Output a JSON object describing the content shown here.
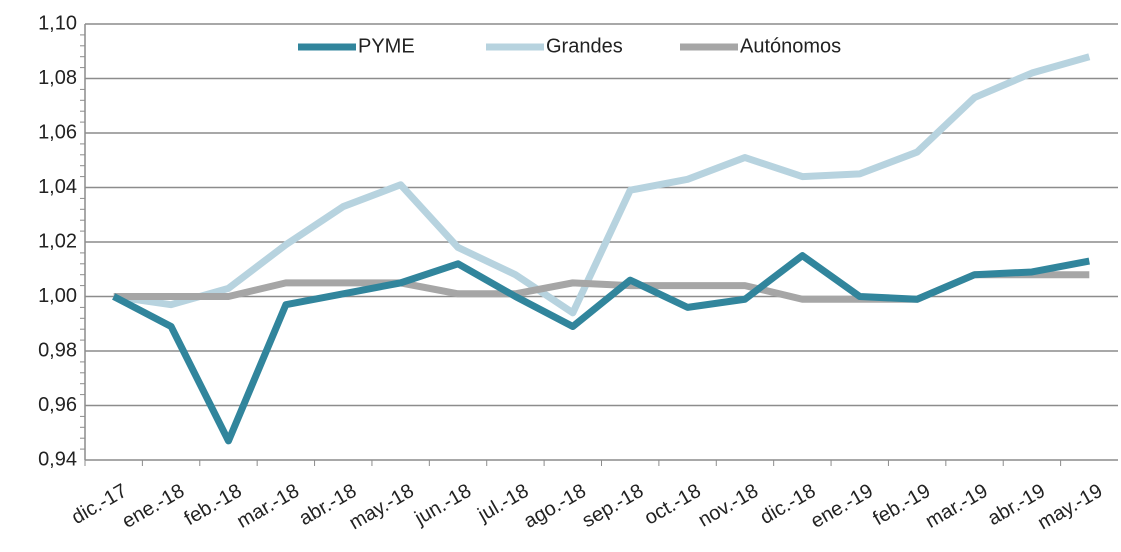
{
  "chart_data": {
    "type": "line",
    "categories": [
      "dic.-17",
      "ene.-18",
      "feb.-18",
      "mar.-18",
      "abr.-18",
      "may.-18",
      "jun.-18",
      "jul.-18",
      "ago.-18",
      "sep.-18",
      "oct.-18",
      "nov.-18",
      "dic.-18",
      "ene.-19",
      "feb.-19",
      "mar.-19",
      "abr.-19",
      "may.-19"
    ],
    "series": [
      {
        "name": "PYME",
        "color": "#31859c",
        "values": [
          1.0,
          0.989,
          0.947,
          0.997,
          1.001,
          1.005,
          1.012,
          1.0,
          0.989,
          1.006,
          0.996,
          0.999,
          1.015,
          1.0,
          0.999,
          1.008,
          1.009,
          1.013
        ]
      },
      {
        "name": "Grandes",
        "color": "#b7d3df",
        "values": [
          1.0,
          0.997,
          1.003,
          1.019,
          1.033,
          1.041,
          1.018,
          1.008,
          0.994,
          1.039,
          1.043,
          1.051,
          1.044,
          1.045,
          1.053,
          1.073,
          1.082,
          1.088
        ]
      },
      {
        "name": "Autónomos",
        "color": "#a6a6a6",
        "values": [
          1.0,
          1.0,
          1.0,
          1.005,
          1.005,
          1.005,
          1.001,
          1.001,
          1.005,
          1.004,
          1.004,
          1.004,
          0.999,
          0.999,
          0.999,
          1.008,
          1.008,
          1.008
        ]
      }
    ],
    "ylim": [
      0.94,
      1.1
    ],
    "yticks": [
      {
        "value": 0.94,
        "label": "0,94"
      },
      {
        "value": 0.96,
        "label": "0,96"
      },
      {
        "value": 0.98,
        "label": "0,98"
      },
      {
        "value": 1.0,
        "label": "1,00"
      },
      {
        "value": 1.02,
        "label": "1,02"
      },
      {
        "value": 1.04,
        "label": "1,04"
      },
      {
        "value": 1.06,
        "label": "1,06"
      },
      {
        "value": 1.08,
        "label": "1,08"
      },
      {
        "value": 1.1,
        "label": "1,10"
      }
    ],
    "grid": true,
    "legend": "top"
  }
}
